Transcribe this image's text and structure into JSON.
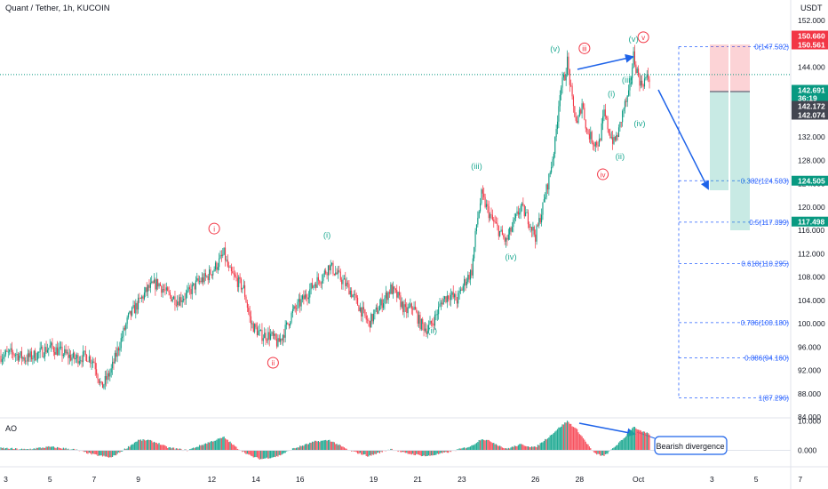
{
  "header": {
    "title": "Quant / Tether, 1h, KUCOIN",
    "currency": "USDT"
  },
  "price_axis": {
    "ticks": [
      "152.000",
      "148.000",
      "144.000",
      "140.000",
      "136.000",
      "132.000",
      "128.000",
      "124.000",
      "120.000",
      "116.000",
      "112.000",
      "108.000",
      "104.000",
      "100.000",
      "96.000",
      "92.000",
      "88.000",
      "84.000"
    ],
    "tick_values": [
      152,
      148,
      144,
      140,
      136,
      132,
      128,
      124,
      120,
      116,
      112,
      108,
      104,
      100,
      96,
      92,
      88,
      84
    ],
    "ylim": [
      84,
      153.5
    ],
    "badges": [
      {
        "text": "150.660",
        "value": 150.66,
        "color": "#f23645"
      },
      {
        "text": "150.561",
        "value": 150.561,
        "color": "#f23645"
      },
      {
        "text": "142.691",
        "value": 142.691,
        "color": "#089981"
      },
      {
        "text": "36:19",
        "value": 141.6,
        "color": "#089981"
      },
      {
        "text": "142.172",
        "value": 140.2,
        "color": "#434651"
      },
      {
        "text": "142.074",
        "value": 138.8,
        "color": "#434651"
      },
      {
        "text": "124.505",
        "value": 124.505,
        "color": "#089981"
      },
      {
        "text": "117.498",
        "value": 117.498,
        "color": "#089981"
      }
    ]
  },
  "time_axis": {
    "labels": [
      "3",
      "5",
      "7",
      "9",
      "12",
      "14",
      "16",
      "19",
      "21",
      "23",
      "26",
      "28",
      "Oct",
      "3",
      "5",
      "7"
    ],
    "label_index": [
      4,
      40,
      76,
      112,
      172,
      208,
      244,
      304,
      340,
      376,
      436,
      472,
      520,
      580,
      616,
      652
    ]
  },
  "ao_axis": {
    "ticks": [
      "10.000",
      "0.000"
    ],
    "tick_values": [
      10,
      0
    ]
  },
  "indicator": {
    "label": "AO",
    "annotation": "Bearish divergence"
  },
  "fib_levels": [
    {
      "label": "0(147.502)",
      "value": 147.502
    },
    {
      "label": "0.382(124.503)",
      "value": 124.503
    },
    {
      "label": "0.5(117.399)",
      "value": 117.399
    },
    {
      "label": "0.618(110.295)",
      "value": 110.295
    },
    {
      "label": "0.786(100.180)",
      "value": 100.18
    },
    {
      "label": "0.886(94.160)",
      "value": 94.16
    },
    {
      "label": "1(87.296)",
      "value": 87.296
    }
  ],
  "wave_labels": [
    {
      "text": "i",
      "idx": 174,
      "value": 116.3,
      "circled": true,
      "color": "#f23645"
    },
    {
      "text": "ii",
      "idx": 222,
      "value": 93.3,
      "circled": true,
      "color": "#f23645"
    },
    {
      "text": "iii",
      "idx": 476,
      "value": 147.2,
      "circled": true,
      "color": "#f23645"
    },
    {
      "text": "iv",
      "idx": 491,
      "value": 125.6,
      "circled": true,
      "color": "#f23645"
    },
    {
      "text": "v",
      "idx": 524,
      "value": 149.1,
      "circled": true,
      "color": "#f23645"
    },
    {
      "text": "(i)",
      "idx": 266,
      "value": 115.2,
      "circled": false,
      "color": "#22ab94"
    },
    {
      "text": "(ii)",
      "idx": 352,
      "value": 98.8,
      "circled": false,
      "color": "#22ab94"
    },
    {
      "text": "(iii)",
      "idx": 388,
      "value": 127.0,
      "circled": false,
      "color": "#22ab94"
    },
    {
      "text": "(iv)",
      "idx": 416,
      "value": 111.5,
      "circled": false,
      "color": "#22ab94"
    },
    {
      "text": "(v)",
      "idx": 452,
      "value": 147.1,
      "circled": false,
      "color": "#22ab94"
    },
    {
      "text": "(i)",
      "idx": 498,
      "value": 139.4,
      "circled": false,
      "color": "#22ab94"
    },
    {
      "text": "(ii)",
      "idx": 505,
      "value": 128.7,
      "circled": false,
      "color": "#22ab94"
    },
    {
      "text": "(iii)",
      "idx": 511,
      "value": 141.8,
      "circled": false,
      "color": "#22ab94"
    },
    {
      "text": "(iv)",
      "idx": 521,
      "value": 134.3,
      "circled": false,
      "color": "#22ab94"
    },
    {
      "text": "(v)",
      "idx": 516,
      "value": 148.8,
      "circled": false,
      "color": "#22ab94"
    }
  ],
  "chart_data": {
    "type": "candlestick",
    "title": "Quant / Tether, 1h, KUCOIN",
    "bar_count": 530,
    "ylim": [
      84,
      153.5
    ],
    "anchors": [
      [
        0,
        94.5
      ],
      [
        10,
        95
      ],
      [
        20,
        94
      ],
      [
        30,
        94.8
      ],
      [
        40,
        96
      ],
      [
        50,
        95
      ],
      [
        60,
        94
      ],
      [
        70,
        94.5
      ],
      [
        76,
        93.5
      ],
      [
        82,
        89
      ],
      [
        90,
        92
      ],
      [
        96,
        96
      ],
      [
        104,
        101
      ],
      [
        112,
        103.5
      ],
      [
        120,
        106
      ],
      [
        128,
        107
      ],
      [
        136,
        105
      ],
      [
        144,
        104
      ],
      [
        152,
        105
      ],
      [
        160,
        107
      ],
      [
        168,
        108
      ],
      [
        176,
        110
      ],
      [
        182,
        112
      ],
      [
        186,
        109
      ],
      [
        192,
        107.5
      ],
      [
        198,
        106
      ],
      [
        204,
        100
      ],
      [
        212,
        98
      ],
      [
        220,
        98
      ],
      [
        226,
        96.5
      ],
      [
        232,
        99
      ],
      [
        238,
        102
      ],
      [
        246,
        104
      ],
      [
        256,
        107
      ],
      [
        262,
        108
      ],
      [
        268,
        110
      ],
      [
        276,
        108
      ],
      [
        284,
        106
      ],
      [
        292,
        103
      ],
      [
        300,
        100
      ],
      [
        306,
        102
      ],
      [
        312,
        104
      ],
      [
        318,
        106
      ],
      [
        324,
        104.5
      ],
      [
        330,
        102
      ],
      [
        336,
        103
      ],
      [
        342,
        100
      ],
      [
        348,
        99
      ],
      [
        354,
        101
      ],
      [
        360,
        104
      ],
      [
        366,
        105
      ],
      [
        372,
        104
      ],
      [
        378,
        107
      ],
      [
        384,
        109
      ],
      [
        388,
        117
      ],
      [
        392,
        122
      ],
      [
        396,
        120
      ],
      [
        400,
        118
      ],
      [
        406,
        116
      ],
      [
        412,
        114
      ],
      [
        418,
        117
      ],
      [
        424,
        120
      ],
      [
        430,
        118
      ],
      [
        436,
        115
      ],
      [
        442,
        120
      ],
      [
        448,
        126
      ],
      [
        452,
        131
      ],
      [
        456,
        140
      ],
      [
        460,
        142.5
      ],
      [
        462,
        145
      ],
      [
        466,
        138
      ],
      [
        470,
        134
      ],
      [
        474,
        138
      ],
      [
        478,
        133
      ],
      [
        484,
        131
      ],
      [
        488,
        131
      ],
      [
        492,
        136
      ],
      [
        496,
        133
      ],
      [
        500,
        131
      ],
      [
        504,
        133
      ],
      [
        508,
        137
      ],
      [
        512,
        139
      ],
      [
        516,
        146
      ],
      [
        518,
        144
      ],
      [
        522,
        141
      ],
      [
        526,
        142
      ],
      [
        529,
        142.1
      ]
    ],
    "ao_anchors": [
      [
        0,
        0.8
      ],
      [
        20,
        0.3
      ],
      [
        40,
        1.2
      ],
      [
        60,
        0.3
      ],
      [
        76,
        -1.5
      ],
      [
        90,
        -2.5
      ],
      [
        104,
        1.2
      ],
      [
        112,
        3.5
      ],
      [
        120,
        3.5
      ],
      [
        128,
        2.5
      ],
      [
        136,
        1
      ],
      [
        152,
        0
      ],
      [
        168,
        2.5
      ],
      [
        182,
        4.5
      ],
      [
        192,
        1
      ],
      [
        204,
        -2
      ],
      [
        212,
        -3
      ],
      [
        226,
        -2
      ],
      [
        238,
        0.5
      ],
      [
        256,
        3
      ],
      [
        268,
        3.5
      ],
      [
        284,
        0
      ],
      [
        300,
        -2
      ],
      [
        318,
        0.5
      ],
      [
        330,
        -1
      ],
      [
        348,
        -2
      ],
      [
        366,
        -0.5
      ],
      [
        384,
        1.5
      ],
      [
        392,
        4
      ],
      [
        400,
        3
      ],
      [
        412,
        0.5
      ],
      [
        424,
        2
      ],
      [
        436,
        1
      ],
      [
        448,
        5
      ],
      [
        456,
        8
      ],
      [
        462,
        10
      ],
      [
        470,
        7
      ],
      [
        484,
        -1
      ],
      [
        492,
        -2
      ],
      [
        500,
        1
      ],
      [
        508,
        4
      ],
      [
        516,
        8.2
      ],
      [
        522,
        6.5
      ],
      [
        529,
        5.6
      ]
    ],
    "volatility": 1.3
  }
}
